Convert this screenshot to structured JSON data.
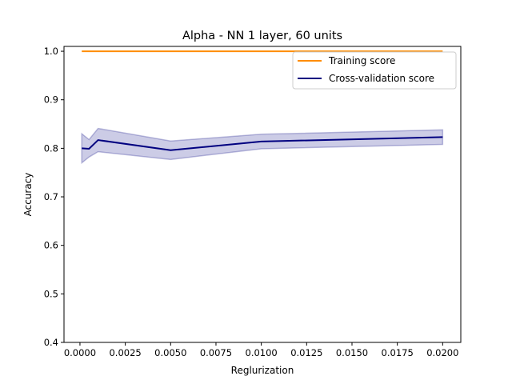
{
  "chart_data": {
    "type": "line",
    "title": "Alpha - NN 1 layer, 60 units",
    "xlabel": "Reglurization",
    "ylabel": "Accuracy",
    "xlim": [
      -0.00088,
      0.021
    ],
    "ylim": [
      0.4,
      1.01
    ],
    "x_ticks": [
      "0.0000",
      "0.0025",
      "0.0050",
      "0.0075",
      "0.0100",
      "0.0125",
      "0.0150",
      "0.0175",
      "0.0200"
    ],
    "x_tick_values": [
      0.0,
      0.0025,
      0.005,
      0.0075,
      0.01,
      0.0125,
      0.015,
      0.0175,
      0.02
    ],
    "y_ticks": [
      "0.4",
      "0.5",
      "0.6",
      "0.7",
      "0.8",
      "0.9",
      "1.0"
    ],
    "y_tick_values": [
      0.4,
      0.5,
      0.6,
      0.7,
      0.8,
      0.9,
      1.0
    ],
    "grid": false,
    "legend_position": "top-right",
    "x": [
      0.0001,
      0.0005,
      0.001,
      0.005,
      0.01,
      0.02
    ],
    "series": [
      {
        "name": "Training score",
        "color": "#ff8c00",
        "values": [
          1.0,
          1.0,
          1.0,
          1.0,
          1.0,
          1.0
        ]
      },
      {
        "name": "Cross-validation score",
        "color": "#000080",
        "values": [
          0.8,
          0.799,
          0.817,
          0.796,
          0.814,
          0.823
        ],
        "band_lower": [
          0.77,
          0.782,
          0.793,
          0.777,
          0.799,
          0.808
        ],
        "band_upper": [
          0.83,
          0.818,
          0.841,
          0.815,
          0.829,
          0.838
        ],
        "band_color": "#000080"
      }
    ]
  }
}
